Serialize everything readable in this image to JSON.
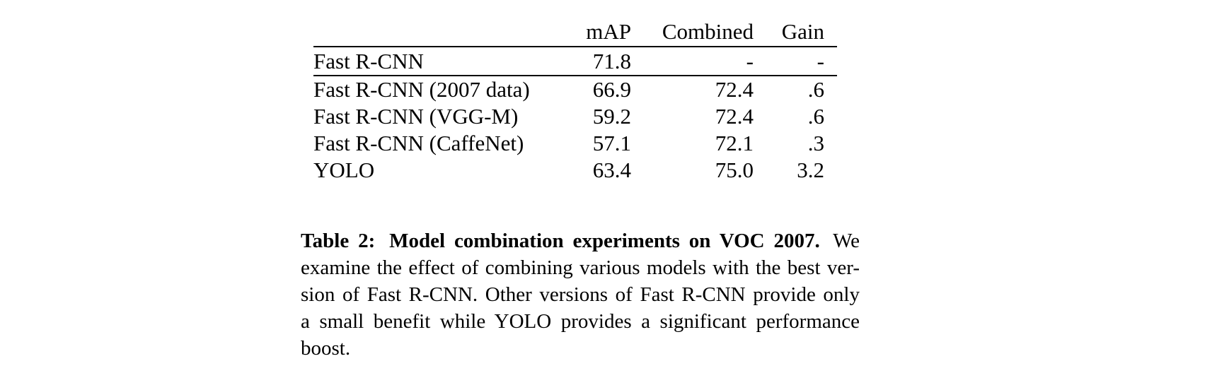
{
  "page": {
    "background_color": "#ffffff",
    "text_color": "#000000"
  },
  "table": {
    "type": "table",
    "columns": [
      "",
      "mAP",
      "Combined",
      "Gain"
    ],
    "rows": [
      {
        "model": "Fast R-CNN",
        "map": "71.8",
        "combined": "-",
        "gain": "-"
      },
      {
        "model": "Fast R-CNN (2007 data)",
        "map": "66.9",
        "combined": "72.4",
        "gain": ".6"
      },
      {
        "model": "Fast R-CNN (VGG-M)",
        "map": "59.2",
        "combined": "72.4",
        "gain": ".6"
      },
      {
        "model": "Fast R-CNN (CaffeNet)",
        "map": "57.1",
        "combined": "72.1",
        "gain": ".3"
      },
      {
        "model": "YOLO",
        "map": "63.4",
        "combined": "75.0",
        "gain": "3.2"
      }
    ],
    "bold_values": [
      "66.9",
      "75.0",
      "3.2"
    ]
  },
  "caption": {
    "label": "Table 2:",
    "title": "Model combination experiments on VOC 2007.",
    "line1_tail": "We",
    "line2": "examine the effect of combining various models with the best ver-",
    "line3": "sion of Fast R-CNN. Other versions of Fast R-CNN provide only",
    "line4": "a small benefit while YOLO provides a significant performance",
    "line5": "boost.",
    "full_text": "Table 2: Model combination experiments on VOC 2007. We examine the effect of combining various models with the best version of Fast R-CNN. Other versions of Fast R-CNN provide only a small benefit while YOLO provides a significant performance boost."
  }
}
